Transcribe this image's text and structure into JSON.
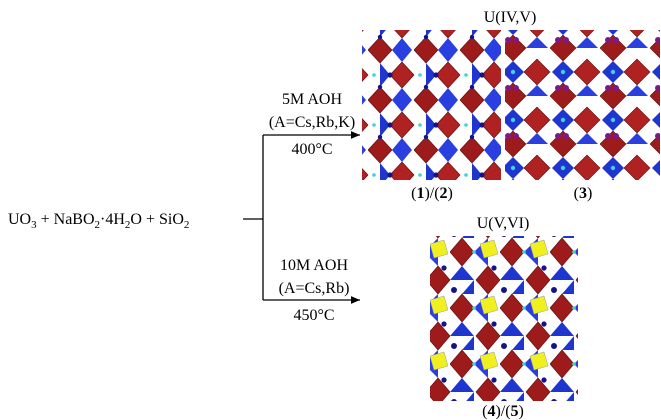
{
  "reactants": [
    "UO",
    "3",
    " + NaBO",
    "2",
    "·4H",
    "2",
    "O + SiO",
    "2"
  ],
  "upper": {
    "conditions": [
      "5M AOH",
      "(A=Cs,Rb,K)"
    ],
    "temperature": "400°C",
    "oxidation_state": "U(IV,V)",
    "products": [
      [
        "(",
        "1",
        ")/(",
        "2",
        ")"
      ],
      [
        "(",
        "3",
        ")"
      ]
    ]
  },
  "lower": {
    "conditions": [
      "10M AOH",
      "(A=Cs,Rb)"
    ],
    "temperature": "450°C",
    "oxidation_state": "U(V,VI)",
    "products": [
      [
        "(",
        "4",
        ")/(",
        "5",
        ")"
      ]
    ]
  }
}
